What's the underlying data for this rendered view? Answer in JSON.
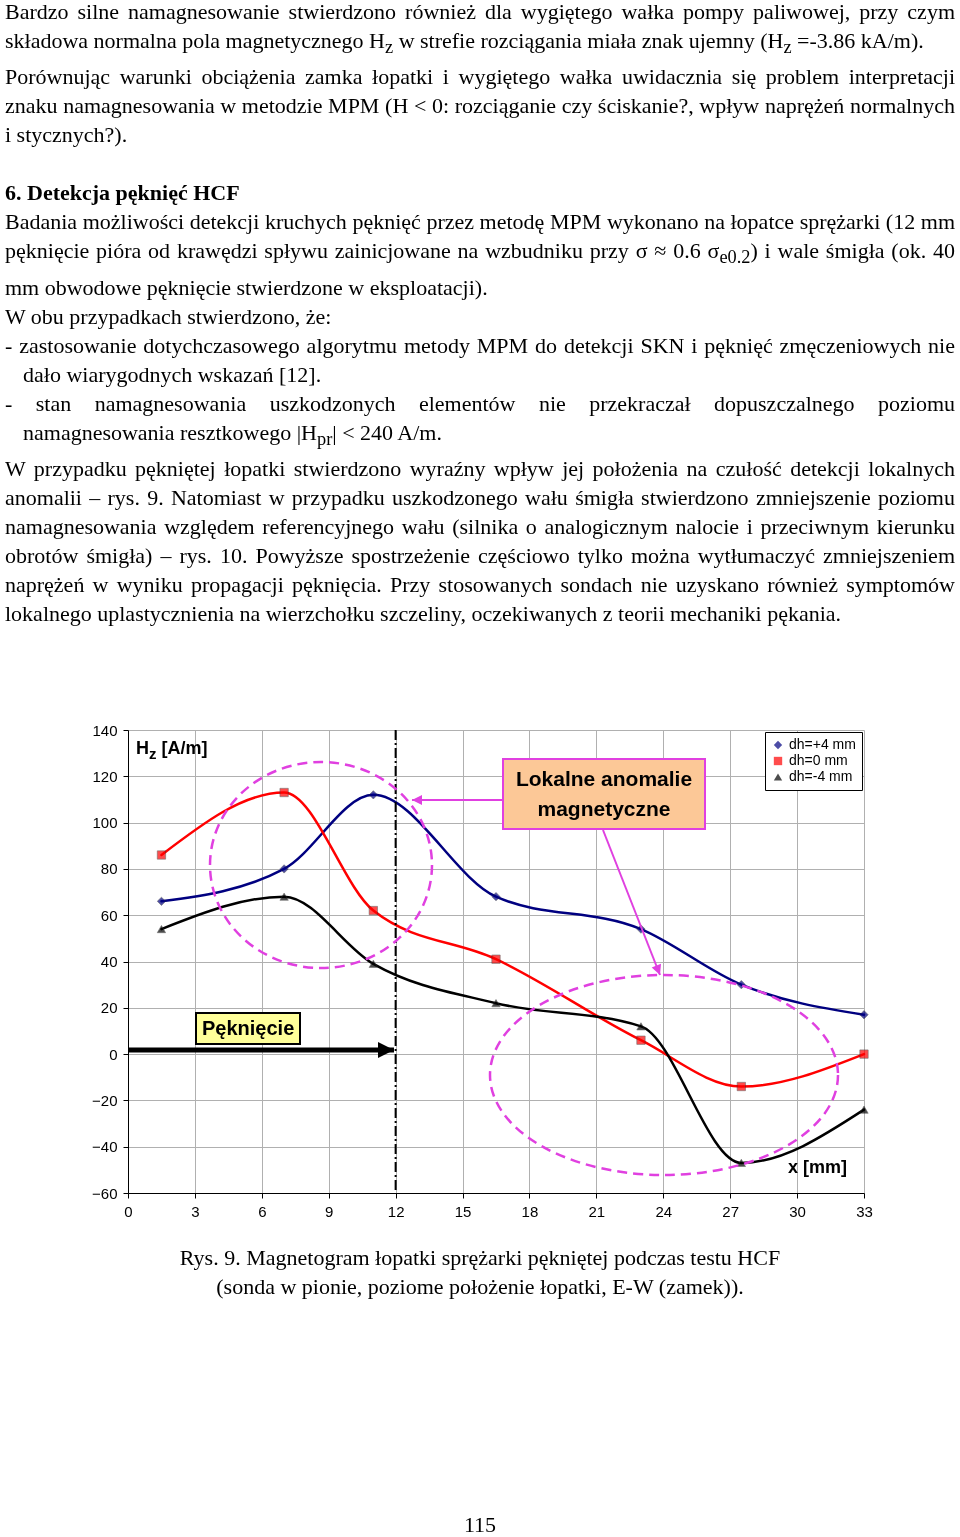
{
  "chart_data": {
    "type": "line",
    "title": "Rys. 9. Magnetogram łopatki sprężarki pękniętej podczas testu HCF\n(sonda w pionie, poziome położenie łopatki, E-W (zamek)).",
    "xlabel": "x [mm]",
    "ylabel": "H$_{z}$ [A/m]",
    "x": [
      1.5,
      7,
      11,
      16.5,
      23,
      27.5,
      33
    ],
    "series": [
      {
        "name": "dh=+4 mm",
        "color": "#000080",
        "marker": "diamond",
        "values": [
          66,
          80,
          112,
          68,
          54,
          30,
          17
        ]
      },
      {
        "name": "dh=0 mm",
        "color": "#ff0000",
        "marker": "square",
        "values": [
          86,
          113,
          62,
          41,
          6,
          -14,
          0
        ]
      },
      {
        "name": "dh=-4 mm",
        "color": "#000000",
        "marker": "triangle",
        "values": [
          54,
          68,
          39,
          22,
          12,
          -47,
          -24
        ]
      }
    ],
    "xlim": [
      0,
      33
    ],
    "xticks": [
      0,
      3,
      6,
      9,
      12,
      15,
      18,
      21,
      24,
      27,
      30,
      33
    ],
    "ylim": [
      -60,
      140
    ],
    "yticks": [
      -60,
      -40,
      -20,
      0,
      20,
      40,
      60,
      80,
      100,
      120,
      140
    ],
    "grid": true,
    "legend": "top right",
    "line_style": "solid",
    "ref_lines": [
      {
        "axis": "x",
        "value": 12,
        "line_style": "dashed",
        "color": "#000000"
      }
    ],
    "annotations": [
      "Bardzo silne namagnesowanie stwierdzono również dla wygiętego wałka pompy paliwowej, przy czym składowa normalna pola magnetycznego H$_{z}$ w strefie rozciągania miała znak ujemny (H$_{z}$ =-3.86 kA/m).",
      "Porównując warunki obciążenia zamka łopatki i wygiętego wałka uwidacznia się problem interpretacji znaku namagnesowania w metodzie MPM (H < 0: rozciąganie czy ściskanie?, wpływ naprężeń normalnych i stycznych?).",
      "6. Detekcja pęknięć HCF",
      "Badania możliwości detekcji kruchych pęknięć przez metodę MPM wykonano na łopatce sprężarki (12 mm pęknięcie pióra od krawędzi spływu zainicjowane na wzbudniku przy σ ≈ 0.6 σ$_{e0.2}$) i wale śmigła (ok. 40 mm obwodowe pęknięcie stwierdzone w eksploatacji).",
      "W obu przypadkach stwierdzono, że:",
      "- zastosowanie dotychczasowego algorytmu metody MPM do detekcji SKN i pęknięć zmęczeniowych nie dało wiarygodnych wskazań [12].",
      "- stan namagnesowania uszkodzonych elementów nie przekraczał dopuszczalnego poziomu namagnesowania resztkowego |H$_{pr}$| < 240 A/m.",
      "W przypadku pękniętej łopatki stwierdzono wyraźny wpływ jej położenia na czułość detekcji lokalnych anomalii – rys. 9. Natomiast w przypadku uszkodzonego wału śmigła stwierdzono zmniejszenie poziomu namagnesowania względem referencyjnego wału (silnika o analogicznym nalocie i przeciwnym kierunku obrotów śmigła) – rys. 10. Powyższe spostrzeżenie częściowo tylko można wytłumaczyć zmniejszeniem naprężeń w wyniku propagacji pęknięcia. Przy stosowanych sondach nie uzyskano również symptomów lokalnego uplastycznienia na wierzchołku szczeliny, oczekiwanych z teorii mechaniki pękania.",
      "Lokalne anomalie magnetyczne",
      "Pęknięcie",
      "115"
    ]
  }
}
